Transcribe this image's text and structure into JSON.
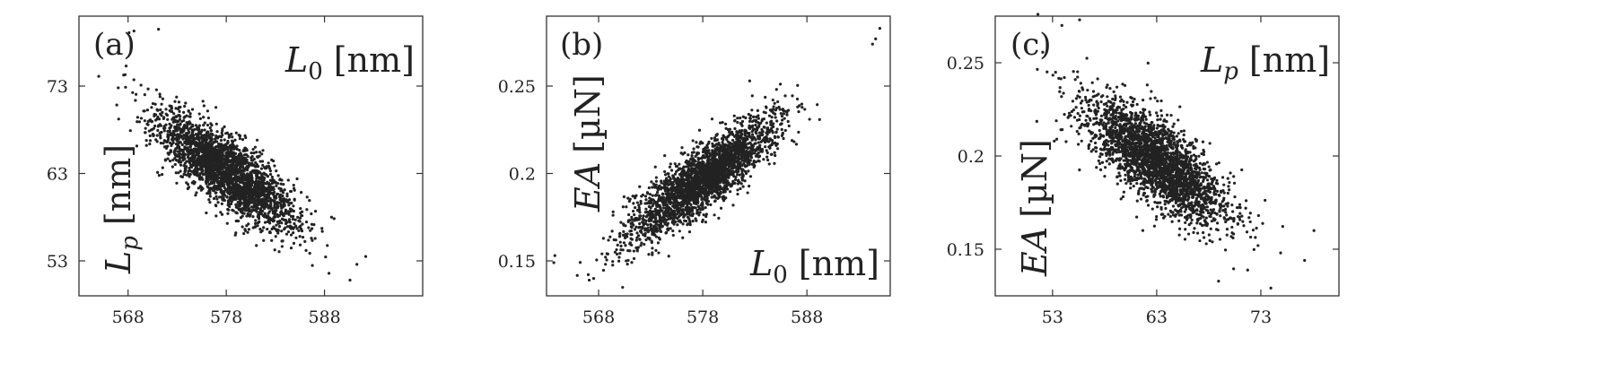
{
  "chart_data": [
    {
      "type": "scatter",
      "panel_label": "(a)",
      "x_variable": "L0",
      "y_variable": "Lp",
      "x_axis_label": {
        "symbol": "L",
        "subscript": "0",
        "unit": "[nm]",
        "placement": "top-right"
      },
      "y_axis_label": {
        "symbol": "L",
        "subscript": "p",
        "unit": "[nm]",
        "placement": "left-rotated-bottom"
      },
      "xlim": [
        563,
        598
      ],
      "ylim": [
        49,
        81
      ],
      "xticks": [
        568,
        578,
        588
      ],
      "yticks": [
        53,
        63,
        73
      ],
      "grid": false,
      "n_points": 2600,
      "cloud": {
        "mean_x": 578,
        "mean_y": 63.3,
        "sd_x": 3.5,
        "sd_y": 3.3,
        "correlation": -0.8
      },
      "highlighted_points": [
        {
          "x": 567.0,
          "y": 72.8
        },
        {
          "x": 567.7,
          "y": 74.3
        },
        {
          "x": 567.8,
          "y": 75.3
        },
        {
          "x": 568.1,
          "y": 79.1
        },
        {
          "x": 568.6,
          "y": 79.3
        },
        {
          "x": 571.1,
          "y": 79.5
        },
        {
          "x": 592.2,
          "y": 53.5
        },
        {
          "x": 591.3,
          "y": 52.6
        },
        {
          "x": 590.6,
          "y": 50.8
        }
      ]
    },
    {
      "type": "scatter",
      "panel_label": "(b)",
      "x_variable": "L0",
      "y_variable": "EA",
      "x_axis_label": {
        "symbol": "L",
        "subscript": "0",
        "unit": "[nm]",
        "placement": "bottom-right"
      },
      "y_axis_label": {
        "symbol": "EA",
        "unit": "[µN]",
        "placement": "left-rotated-top"
      },
      "xlim": [
        563,
        596
      ],
      "ylim": [
        0.13,
        0.29
      ],
      "xticks": [
        568,
        578,
        588
      ],
      "yticks": [
        0.15,
        0.2,
        0.25
      ],
      "ytick_labels": [
        "0.15",
        "0.2",
        "0.25"
      ],
      "grid": false,
      "n_points": 2600,
      "cloud": {
        "mean_x": 578,
        "mean_y": 0.197,
        "sd_x": 3.5,
        "sd_y": 0.017,
        "correlation": 0.85
      },
      "highlighted_points": [
        {
          "x": 563.8,
          "y": 0.153
        },
        {
          "x": 563.7,
          "y": 0.149
        },
        {
          "x": 567.1,
          "y": 0.139
        },
        {
          "x": 595.0,
          "y": 0.283
        },
        {
          "x": 594.6,
          "y": 0.277
        },
        {
          "x": 594.3,
          "y": 0.274
        }
      ]
    },
    {
      "type": "scatter",
      "panel_label": "(c)",
      "x_variable": "Lp",
      "y_variable": "EA",
      "x_axis_label": {
        "symbol": "L",
        "subscript": "p",
        "unit": "[nm]",
        "placement": "top-right"
      },
      "y_axis_label": {
        "symbol": "EA",
        "unit": "[µN]",
        "placement": "left-rotated-bottom"
      },
      "xlim": [
        47.5,
        80.5
      ],
      "ylim": [
        0.125,
        0.275
      ],
      "xticks": [
        53,
        63,
        73
      ],
      "yticks": [
        0.15,
        0.2,
        0.25
      ],
      "ytick_labels": [
        "0.15",
        "0.2",
        "0.25"
      ],
      "grid": false,
      "n_points": 2600,
      "cloud": {
        "mean_x": 63,
        "mean_y": 0.197,
        "sd_x": 3.4,
        "sd_y": 0.017,
        "correlation": -0.75
      },
      "highlighted_points": [
        {
          "x": 51.6,
          "y": 0.276
        },
        {
          "x": 53.9,
          "y": 0.27
        },
        {
          "x": 55.6,
          "y": 0.273
        },
        {
          "x": 77.2,
          "y": 0.144
        },
        {
          "x": 78.1,
          "y": 0.16
        },
        {
          "x": 74.9,
          "y": 0.148
        }
      ]
    }
  ]
}
